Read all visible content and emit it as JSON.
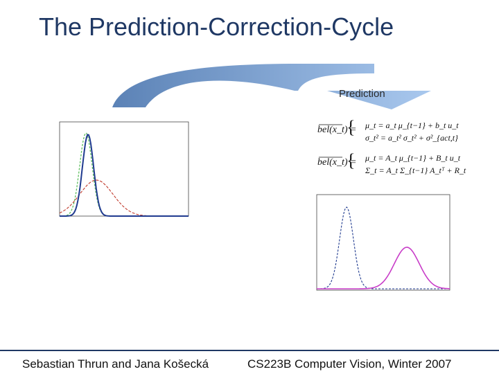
{
  "slide": {
    "title": "The Prediction-Correction-Cycle",
    "arrow_label": "Prediction",
    "footer_left": "Sebastian Thrun and Jana Košecká",
    "footer_right": "CS223B Computer Vision, Winter 2007"
  },
  "colors": {
    "title": "#1f3864",
    "arrow_start": "#5b82b6",
    "arrow_end": "#a9c8ee",
    "blue_curve": "#1f3a8f",
    "green_curve": "#5fbf5f",
    "red_curve": "#c0392b",
    "magenta_curve": "#c83cc8"
  },
  "equations": {
    "eq1_lhs": "bel(x_t) =",
    "eq1_line1": "μ_t = a_t μ_{t−1} + b_t u_t",
    "eq1_line2": "σ_t² = a_t² σ_t² + σ²_{act,t}",
    "eq2_lhs": "bel(x_t) =",
    "eq2_line1": "μ_t = A_t μ_{t−1} + B_t u_t",
    "eq2_line2": "Σ_t = A_t Σ_{t−1} A_tᵀ + R_t"
  }
}
